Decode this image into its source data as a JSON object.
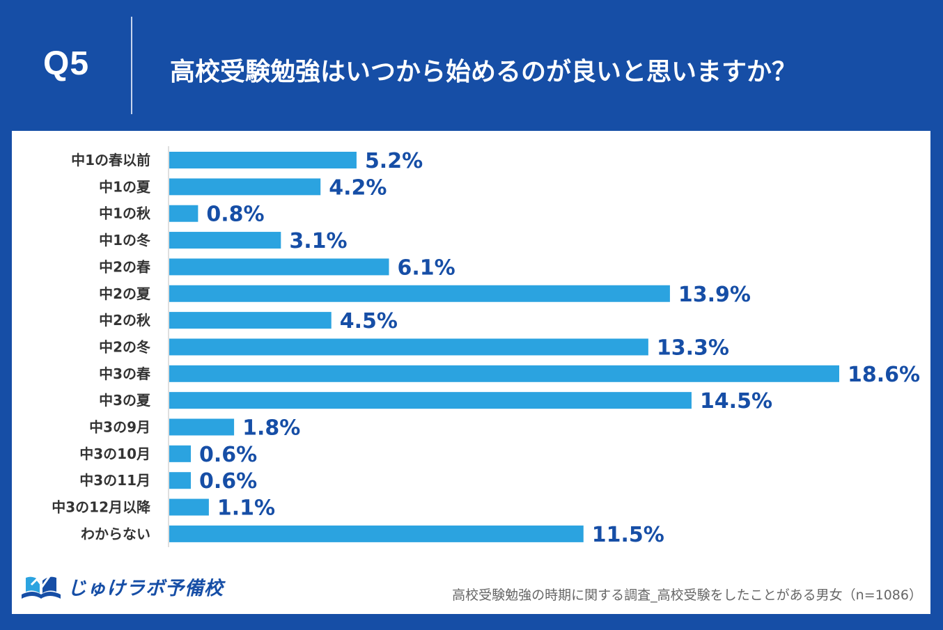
{
  "header": {
    "q_label": "Q5",
    "question": "高校受験勉強はいつから始めるのが良いと思いますか？"
  },
  "colors": {
    "background": "#164ea6",
    "bar": "#2ba3e0",
    "value_text": "#164ea6"
  },
  "chart_data": {
    "type": "bar",
    "orientation": "horizontal",
    "title": "高校受験勉強はいつから始めるのが良いと思いますか？",
    "categories": [
      "中1の春以前",
      "中1の夏",
      "中1の秋",
      "中1の冬",
      "中2の春",
      "中2の夏",
      "中2の秋",
      "中2の冬",
      "中3の春",
      "中3の夏",
      "中3の9月",
      "中3の10月",
      "中3の11月",
      "中3の12月以降",
      "わからない"
    ],
    "values": [
      5.2,
      4.2,
      0.8,
      3.1,
      6.1,
      13.9,
      4.5,
      13.3,
      18.6,
      14.5,
      1.8,
      0.6,
      0.6,
      1.1,
      11.5
    ],
    "value_labels": [
      "5.2%",
      "4.2%",
      "0.8%",
      "3.1%",
      "6.1%",
      "13.9%",
      "4.5%",
      "13.3%",
      "18.6%",
      "14.5%",
      "1.8%",
      "0.6%",
      "0.6%",
      "1.1%",
      "11.5%"
    ],
    "unit": "%",
    "xlim": [
      0,
      18.6
    ],
    "grid": false,
    "legend": "none"
  },
  "footer": {
    "logo_text": "じゅけラボ予備校",
    "source": "高校受験勉強の時期に関する調査_高校受験をしたことがある男女（n=1086）"
  }
}
